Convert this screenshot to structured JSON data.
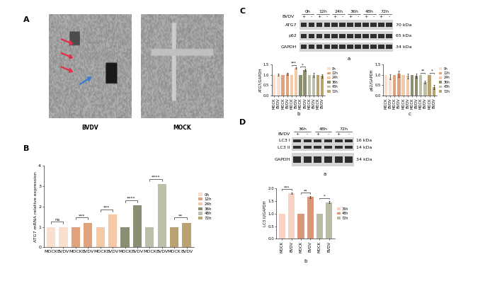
{
  "figure": {
    "A": {
      "panel_label": "A",
      "images": [
        "BVDV",
        "MOCK"
      ]
    },
    "B": {
      "panel_label": "B"
    },
    "C": {
      "panel_label": "C",
      "blot": {
        "sub_label": "a",
        "treatment": "BVDV",
        "lanes": [
          "0h",
          "12h",
          "24h",
          "36h",
          "48h",
          "72h"
        ],
        "signs": [
          "+",
          "-"
        ],
        "rows": [
          {
            "protein": [
              "ATG7"
            ],
            "size": [
              "70 kDa"
            ]
          },
          {
            "protein": [
              "p62"
            ],
            "size": [
              "65 kDa"
            ]
          },
          {
            "protein": [
              "GAPDH"
            ],
            "size": [
              "34 kDa"
            ]
          }
        ]
      }
    },
    "D": {
      "panel_label": "D",
      "blot": {
        "sub_label": "a",
        "treatment": "BVDV",
        "lanes": [
          "36h",
          "48h",
          "72h"
        ],
        "signs": [
          "+",
          "-"
        ],
        "rows": [
          {
            "protein": [
              "LC3 I",
              "LC3 II"
            ],
            "size": [
              "16 kDa",
              "14 kDa"
            ]
          },
          {
            "protein": [
              "GAPDH"
            ],
            "size": [
              "34 kDa"
            ]
          }
        ]
      }
    }
  },
  "chart_data": [
    {
      "type": "bar",
      "ylabel": "ATG7 mRNA relative expression",
      "categories": [
        "MOCK",
        "BVDV",
        "MOCK",
        "BVDV",
        "MOCK",
        "BVDV",
        "MOCK",
        "BVDV",
        "MOCK",
        "BVDV",
        "MOCK",
        "BVDV"
      ],
      "ylim": [
        0,
        4
      ],
      "yticks": [
        0,
        1,
        2,
        3,
        4
      ],
      "legend": "right",
      "series": [
        {
          "name": "0h",
          "color": "#f9dfcf",
          "values": [
            1.0,
            1.0,
            null,
            null,
            null,
            null,
            null,
            null,
            null,
            null,
            null,
            null
          ]
        },
        {
          "name": "12h",
          "color": "#e2a27c",
          "values": [
            null,
            null,
            1.0,
            1.2,
            null,
            null,
            null,
            null,
            null,
            null,
            null,
            null
          ]
        },
        {
          "name": "24h",
          "color": "#f3c9a6",
          "values": [
            null,
            null,
            null,
            null,
            1.0,
            1.6,
            null,
            null,
            null,
            null,
            null,
            null
          ]
        },
        {
          "name": "36h",
          "color": "#8b8e72",
          "values": [
            null,
            null,
            null,
            null,
            null,
            null,
            1.0,
            2.05,
            null,
            null,
            null,
            null
          ]
        },
        {
          "name": "48h",
          "color": "#bcbfa9",
          "values": [
            null,
            null,
            null,
            null,
            null,
            null,
            null,
            null,
            1.0,
            3.1,
            null,
            null
          ]
        },
        {
          "name": "72h",
          "color": "#b9a373",
          "values": [
            null,
            null,
            null,
            null,
            null,
            null,
            null,
            null,
            null,
            null,
            1.0,
            1.2
          ]
        }
      ],
      "brackets": [
        {
          "label": "ns",
          "from": 0,
          "to": 1
        },
        {
          "label": "***",
          "from": 2,
          "to": 3
        },
        {
          "label": "***",
          "from": 4,
          "to": 5
        },
        {
          "label": "****",
          "from": 6,
          "to": 7
        },
        {
          "label": "****",
          "from": 8,
          "to": 9
        },
        {
          "label": "**",
          "from": 10,
          "to": 11
        }
      ]
    },
    {
      "type": "bar",
      "sub_label": "b",
      "ylabel": "ATG7/GAPDH",
      "categories": [
        "MOCK",
        "BVDV",
        "MOCK",
        "BVDV",
        "MOCK",
        "BVDV",
        "MOCK",
        "BVDV",
        "MOCK",
        "BVDV",
        "MOCK",
        "BVDV"
      ],
      "ylim": [
        0.0,
        1.5
      ],
      "yticks": [
        0.0,
        0.5,
        1.0,
        1.5
      ],
      "legend": "right",
      "series": [
        {
          "name": "0h",
          "color": "#f9dfcf",
          "values": [
            1.0,
            1.02,
            null,
            null,
            null,
            null,
            null,
            null,
            null,
            null,
            null,
            null
          ],
          "errors": [
            null,
            0.05,
            null,
            null,
            null,
            null,
            null,
            null,
            null,
            null,
            null,
            null
          ]
        },
        {
          "name": "12h",
          "color": "#e2a27c",
          "values": [
            null,
            null,
            1.0,
            1.05,
            null,
            null,
            null,
            null,
            null,
            null,
            null,
            null
          ],
          "errors": [
            null,
            null,
            null,
            0.06,
            null,
            null,
            null,
            null,
            null,
            null,
            null,
            null
          ]
        },
        {
          "name": "24h",
          "color": "#f3c9a6",
          "values": [
            null,
            null,
            null,
            null,
            1.0,
            1.35,
            null,
            null,
            null,
            null,
            null,
            null
          ],
          "errors": [
            null,
            null,
            null,
            null,
            null,
            0.04,
            null,
            null,
            null,
            null,
            null,
            null
          ]
        },
        {
          "name": "36h",
          "color": "#8b8e72",
          "values": [
            null,
            null,
            null,
            null,
            null,
            null,
            1.0,
            1.25,
            null,
            null,
            null,
            null
          ],
          "errors": [
            null,
            null,
            null,
            null,
            null,
            null,
            null,
            0.05,
            null,
            null,
            null,
            null
          ]
        },
        {
          "name": "48h",
          "color": "#bcbfa9",
          "values": [
            null,
            null,
            null,
            null,
            null,
            null,
            null,
            null,
            1.0,
            1.0,
            null,
            null
          ],
          "errors": [
            null,
            null,
            null,
            null,
            null,
            null,
            null,
            null,
            null,
            0.1,
            null,
            null
          ]
        },
        {
          "name": "72h",
          "color": "#b9a373",
          "values": [
            null,
            null,
            null,
            null,
            null,
            null,
            null,
            null,
            null,
            null,
            1.0,
            0.95
          ],
          "errors": [
            null,
            null,
            null,
            null,
            null,
            null,
            null,
            null,
            null,
            null,
            null,
            0.08
          ]
        }
      ],
      "brackets": [
        {
          "label": "***",
          "from": 4,
          "to": 5
        },
        {
          "label": "*",
          "from": 6,
          "to": 7
        }
      ]
    },
    {
      "type": "bar",
      "sub_label": "c",
      "ylabel": "p62/GAPDH",
      "categories": [
        "MOCK",
        "BVDV",
        "MOCK",
        "BVDV",
        "MOCK",
        "BVDV",
        "MOCK",
        "BVDV",
        "MOCK",
        "BVDV",
        "MOCK",
        "BVDV"
      ],
      "ylim": [
        0.0,
        1.5
      ],
      "yticks": [
        0.0,
        0.5,
        1.0,
        1.5
      ],
      "legend": "right",
      "series": [
        {
          "name": "0h",
          "color": "#f9dfcf",
          "values": [
            1.0,
            0.9,
            null,
            null,
            null,
            null,
            null,
            null,
            null,
            null,
            null,
            null
          ],
          "errors": [
            null,
            0.12,
            null,
            null,
            null,
            null,
            null,
            null,
            null,
            null,
            null,
            null
          ]
        },
        {
          "name": "12h",
          "color": "#e2a27c",
          "values": [
            null,
            null,
            1.0,
            1.05,
            null,
            null,
            null,
            null,
            null,
            null,
            null,
            null
          ],
          "errors": [
            null,
            null,
            null,
            0.15,
            null,
            null,
            null,
            null,
            null,
            null,
            null,
            null
          ]
        },
        {
          "name": "24h",
          "color": "#f3c9a6",
          "values": [
            null,
            null,
            null,
            null,
            1.0,
            0.95,
            null,
            null,
            null,
            null,
            null,
            null
          ],
          "errors": [
            null,
            null,
            null,
            null,
            null,
            0.13,
            null,
            null,
            null,
            null,
            null,
            null
          ]
        },
        {
          "name": "36h",
          "color": "#8b8e72",
          "values": [
            null,
            null,
            null,
            null,
            null,
            null,
            1.0,
            0.95,
            null,
            null,
            null,
            null
          ],
          "errors": [
            null,
            null,
            null,
            null,
            null,
            null,
            null,
            0.1,
            null,
            null,
            null,
            null
          ]
        },
        {
          "name": "48h",
          "color": "#bcbfa9",
          "values": [
            null,
            null,
            null,
            null,
            null,
            null,
            null,
            null,
            1.0,
            0.65,
            null,
            null
          ],
          "errors": [
            null,
            null,
            null,
            null,
            null,
            null,
            null,
            null,
            null,
            0.08,
            null,
            null
          ]
        },
        {
          "name": "72h",
          "color": "#b9a373",
          "values": [
            null,
            null,
            null,
            null,
            null,
            null,
            null,
            null,
            null,
            null,
            1.0,
            0.4
          ],
          "errors": [
            null,
            null,
            null,
            null,
            null,
            null,
            null,
            null,
            null,
            null,
            null,
            0.1
          ]
        }
      ],
      "brackets": [
        {
          "label": "**",
          "from": 8,
          "to": 9
        },
        {
          "label": "*",
          "from": 10,
          "to": 11
        }
      ]
    },
    {
      "type": "bar",
      "sub_label": "b",
      "ylabel": "LC3 II/GAPDH",
      "categories": [
        "MOCK",
        "BVDV",
        "MOCK",
        "BVDV",
        "MOCK",
        "BVDV"
      ],
      "ylim": [
        0.0,
        2.0
      ],
      "yticks": [
        0.0,
        0.5,
        1.0,
        1.5,
        2.0
      ],
      "legend": "right",
      "series": [
        {
          "name": "36h",
          "color": "#f7d3c5",
          "values": [
            1.0,
            1.8,
            null,
            null,
            null,
            null
          ],
          "errors": [
            null,
            0.03,
            null,
            null,
            null,
            null
          ]
        },
        {
          "name": "48h",
          "color": "#d9977a",
          "values": [
            null,
            null,
            1.0,
            1.65,
            null,
            null
          ],
          "errors": [
            null,
            null,
            null,
            0.05,
            null,
            null
          ]
        },
        {
          "name": "72h",
          "color": "#b9bda5",
          "values": [
            null,
            null,
            null,
            null,
            1.0,
            1.45
          ],
          "errors": [
            null,
            null,
            null,
            null,
            null,
            0.04
          ]
        }
      ],
      "brackets": [
        {
          "label": "***",
          "from": 0,
          "to": 1
        },
        {
          "label": "**",
          "from": 2,
          "to": 3
        },
        {
          "label": "*",
          "from": 4,
          "to": 5
        }
      ]
    }
  ]
}
